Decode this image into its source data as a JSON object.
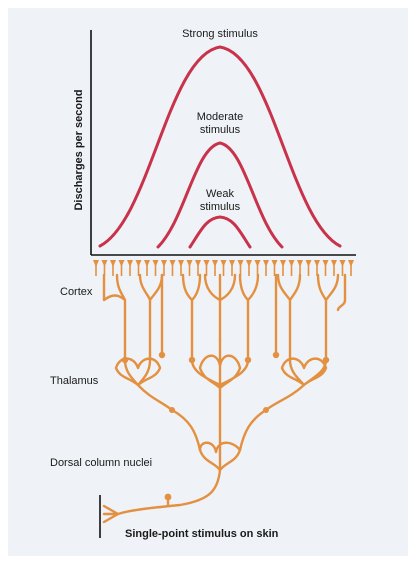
{
  "diagram": {
    "y_axis_label": "Discharges per second",
    "curves": {
      "strong": "Strong stimulus",
      "moderate_line1": "Moderate",
      "moderate_line2": "stimulus",
      "weak_line1": "Weak",
      "weak_line2": "stimulus"
    },
    "levels": {
      "cortex": "Cortex",
      "thalamus": "Thalamus",
      "dorsal": "Dorsal column nuclei",
      "stimulus": "Single-point stimulus on skin"
    },
    "colors": {
      "curve": "#c8324a",
      "neuron": "#e39040",
      "background": "#eff2f6",
      "axis": "#111111"
    }
  }
}
